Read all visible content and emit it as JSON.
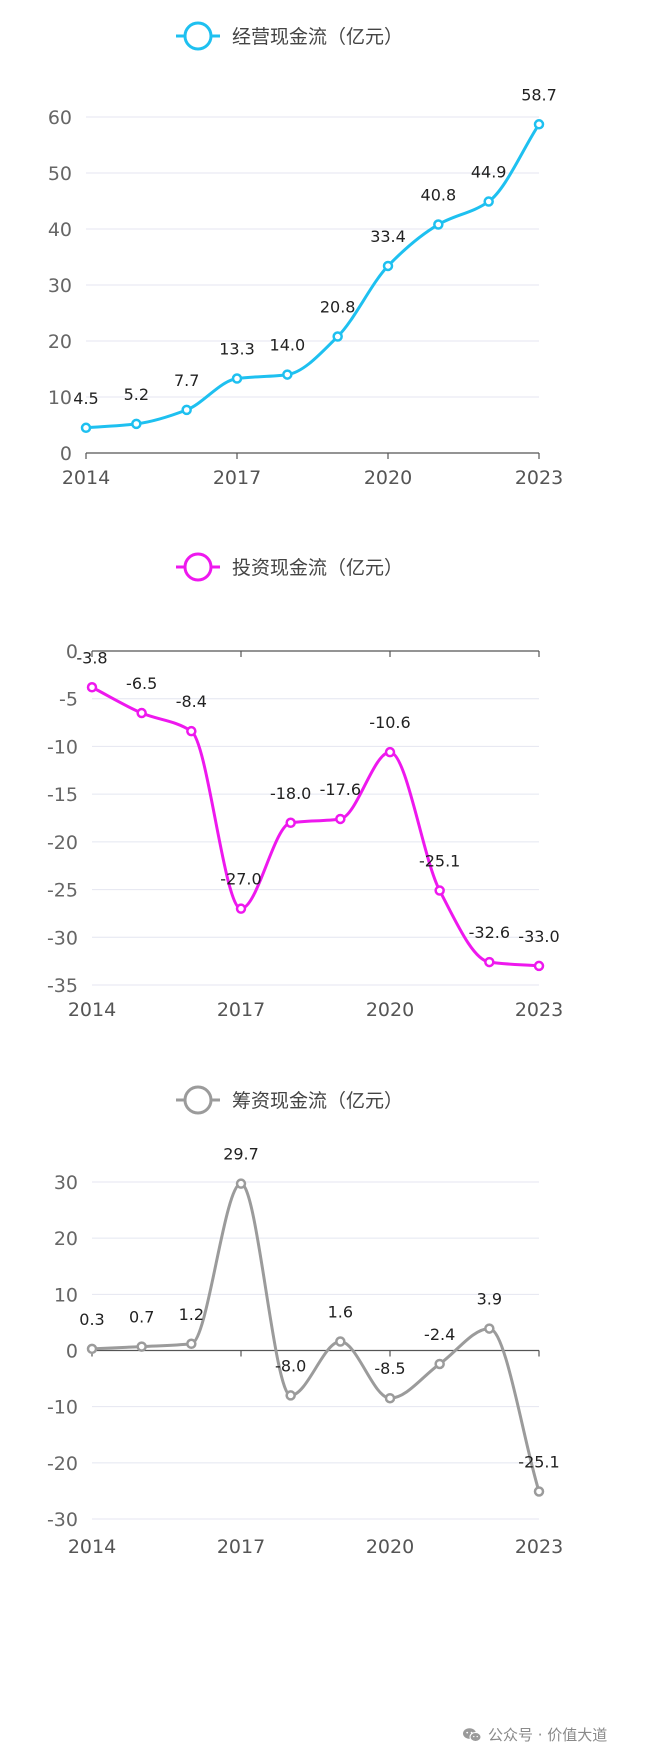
{
  "chart_data": [
    {
      "type": "line",
      "title": "",
      "legend": "top-center",
      "x": [
        "2014",
        "2015",
        "2016",
        "2017",
        "2018",
        "2019",
        "2020",
        "2021",
        "2022",
        "2023"
      ],
      "x_tick_labels": [
        "2014",
        "2017",
        "2020",
        "2023"
      ],
      "y_ticks": [
        0,
        10,
        20,
        30,
        40,
        50,
        60
      ],
      "ylim": [
        0,
        60
      ],
      "grid": true,
      "series": [
        {
          "name": "经营现金流（亿元）",
          "color": "#1ec0f0",
          "values": [
            4.5,
            5.2,
            7.7,
            13.3,
            14.0,
            20.8,
            33.4,
            40.8,
            44.9,
            58.7
          ],
          "labels": [
            "4.5",
            "5.2",
            "7.7",
            "13.3",
            "14.0",
            "20.8",
            "33.4",
            "40.8",
            "44.9",
            "58.7"
          ]
        }
      ]
    },
    {
      "type": "line",
      "title": "",
      "legend": "top-center",
      "x": [
        "2014",
        "2015",
        "2016",
        "2017",
        "2018",
        "2019",
        "2020",
        "2021",
        "2022",
        "2023"
      ],
      "x_tick_labels": [
        "2014",
        "2017",
        "2020",
        "2023"
      ],
      "y_ticks": [
        0,
        -5,
        -10,
        -15,
        -20,
        -25,
        -30,
        -35
      ],
      "ylim": [
        -35,
        0
      ],
      "grid": true,
      "series": [
        {
          "name": "投资现金流（亿元）",
          "color": "#ee18ee",
          "values": [
            -3.8,
            -6.5,
            -8.4,
            -27.0,
            -18.0,
            -17.6,
            -10.6,
            -25.1,
            -32.6,
            -33.0
          ],
          "labels": [
            "-3.8",
            "-6.5",
            "-8.4",
            "-27.0",
            "-18.0",
            "-17.6",
            "-10.6",
            "-25.1",
            "-32.6",
            "-33.0"
          ]
        }
      ]
    },
    {
      "type": "line",
      "title": "",
      "legend": "top-center",
      "x": [
        "2014",
        "2015",
        "2016",
        "2017",
        "2018",
        "2019",
        "2020",
        "2021",
        "2022",
        "2023"
      ],
      "x_tick_labels": [
        "2014",
        "2017",
        "2020",
        "2023"
      ],
      "y_ticks": [
        30,
        20,
        10,
        0,
        -10,
        -20,
        -30
      ],
      "ylim": [
        -30,
        30
      ],
      "grid": true,
      "series": [
        {
          "name": "筹资现金流（亿元）",
          "color": "#9b9b9b",
          "values": [
            0.3,
            0.7,
            1.2,
            29.7,
            -8.0,
            1.6,
            -8.5,
            -2.4,
            3.9,
            -25.1
          ],
          "labels": [
            "0.3",
            "0.7",
            "1.2",
            "29.7",
            "-8.0",
            "1.6",
            "-8.5",
            "-2.4",
            "3.9",
            "-25.1"
          ]
        }
      ]
    }
  ],
  "watermark": {
    "text": "公众号 · 价值大道",
    "icon": "wechat-icon"
  }
}
